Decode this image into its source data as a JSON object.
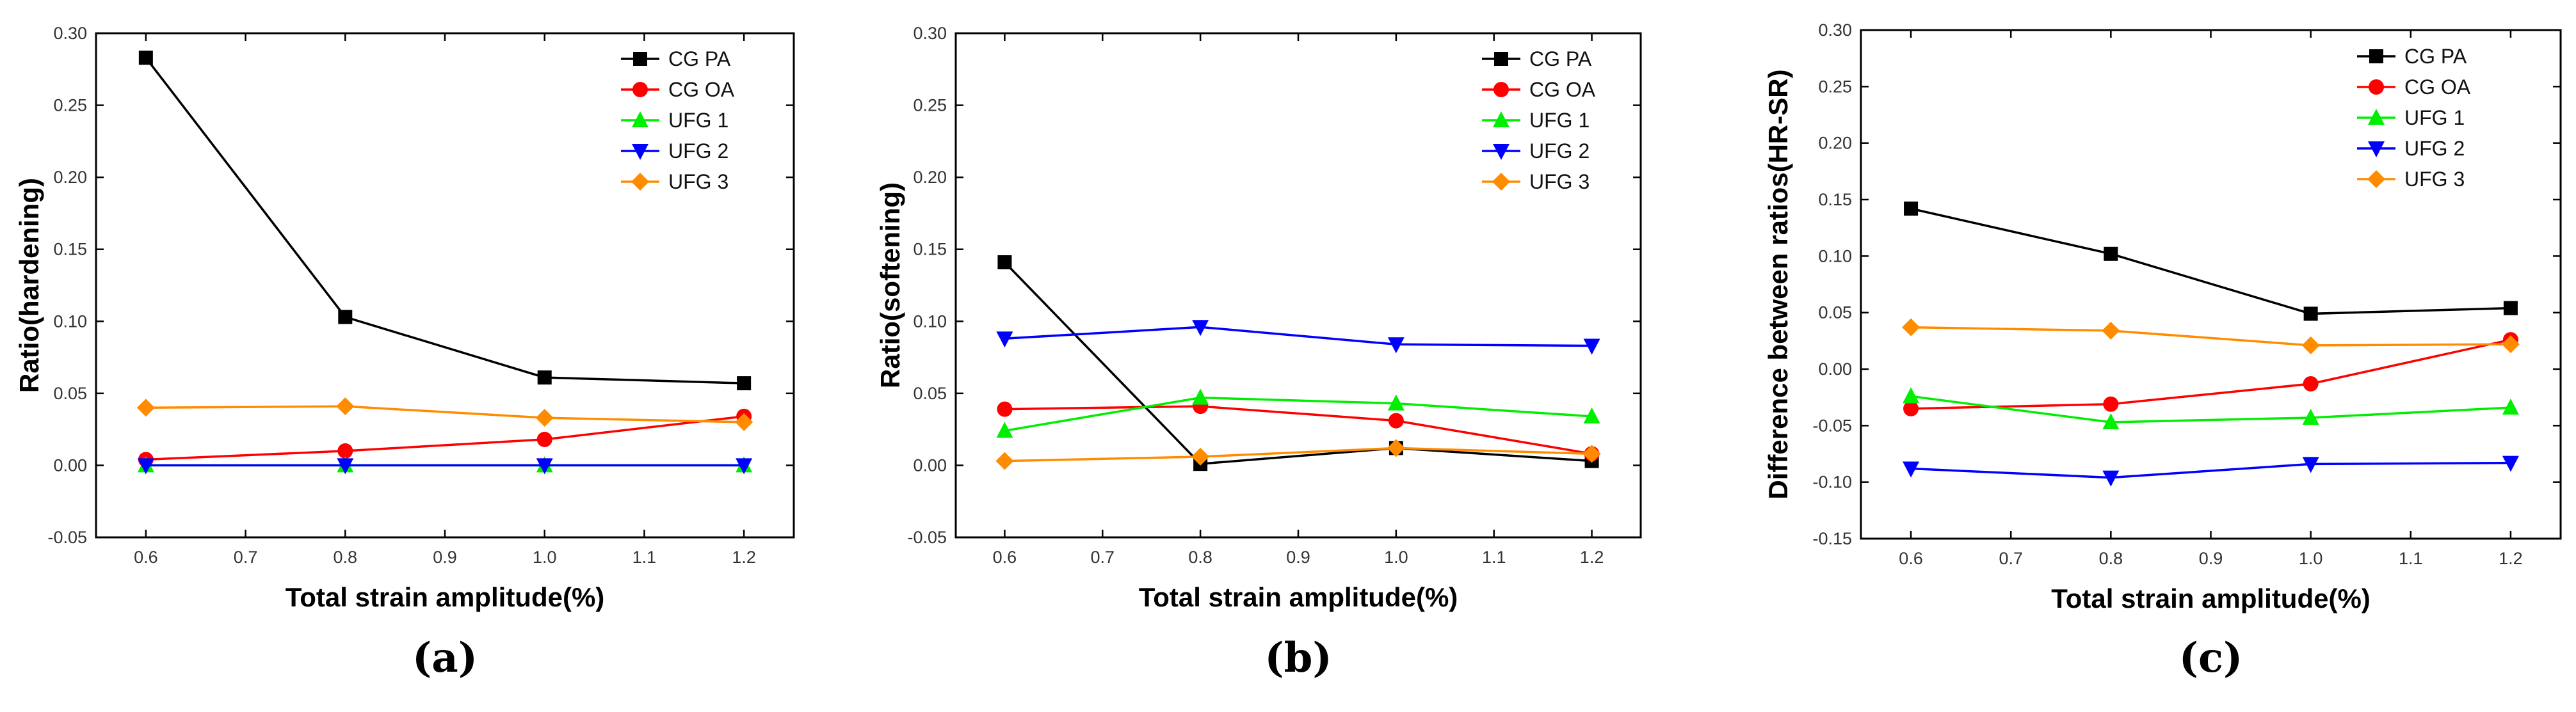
{
  "chart_data": [
    {
      "type": "line",
      "panel": "(a)",
      "xlabel": "Total strain amplitude(%)",
      "ylabel": "Ratio(hardening)",
      "xlim": [
        0.55,
        1.25
      ],
      "ylim": [
        -0.05,
        0.3
      ],
      "xticks": [
        0.6,
        0.7,
        0.8,
        0.9,
        1.0,
        1.1,
        1.2
      ],
      "xtick_labels": [
        "0.6",
        "0.7",
        "0.8",
        "0.9",
        "1.0",
        "1.1",
        "1.2"
      ],
      "yticks": [
        -0.05,
        0.0,
        0.05,
        0.1,
        0.15,
        0.2,
        0.25,
        0.3
      ],
      "ytick_labels": [
        "-0.05",
        "0.00",
        "0.05",
        "0.10",
        "0.15",
        "0.20",
        "0.25",
        "0.30"
      ],
      "legend_position": "top-right",
      "x": [
        0.6,
        0.8,
        1.0,
        1.2
      ],
      "series": [
        {
          "name": "CG PA",
          "color": "#000000",
          "marker": "square",
          "values": [
            0.283,
            0.103,
            0.061,
            0.057
          ]
        },
        {
          "name": "CG OA",
          "color": "#ff0000",
          "marker": "circle",
          "values": [
            0.004,
            0.01,
            0.018,
            0.034
          ]
        },
        {
          "name": "UFG 1",
          "color": "#00ee00",
          "marker": "triangle-up",
          "values": [
            0.0,
            0.0,
            0.0,
            0.0
          ]
        },
        {
          "name": "UFG 2",
          "color": "#0000ff",
          "marker": "triangle-down",
          "values": [
            0.0,
            0.0,
            0.0,
            0.0
          ]
        },
        {
          "name": "UFG 3",
          "color": "#ff8c00",
          "marker": "diamond",
          "values": [
            0.04,
            0.041,
            0.033,
            0.03
          ]
        }
      ]
    },
    {
      "type": "line",
      "panel": "(b)",
      "xlabel": "Total strain amplitude(%)",
      "ylabel": "Ratio(softening)",
      "xlim": [
        0.55,
        1.25
      ],
      "ylim": [
        -0.05,
        0.3
      ],
      "xticks": [
        0.6,
        0.7,
        0.8,
        0.9,
        1.0,
        1.1,
        1.2
      ],
      "xtick_labels": [
        "0.6",
        "0.7",
        "0.8",
        "0.9",
        "1.0",
        "1.1",
        "1.2"
      ],
      "yticks": [
        -0.05,
        0.0,
        0.05,
        0.1,
        0.15,
        0.2,
        0.25,
        0.3
      ],
      "ytick_labels": [
        "-0.05",
        "0.00",
        "0.05",
        "0.10",
        "0.15",
        "0.20",
        "0.25",
        "0.30"
      ],
      "legend_position": "top-right",
      "x": [
        0.6,
        0.8,
        1.0,
        1.2
      ],
      "series": [
        {
          "name": "CG PA",
          "color": "#000000",
          "marker": "square",
          "values": [
            0.141,
            0.001,
            0.012,
            0.003
          ]
        },
        {
          "name": "CG OA",
          "color": "#ff0000",
          "marker": "circle",
          "values": [
            0.039,
            0.041,
            0.031,
            0.008
          ]
        },
        {
          "name": "UFG 1",
          "color": "#00ee00",
          "marker": "triangle-up",
          "values": [
            0.024,
            0.047,
            0.043,
            0.034
          ]
        },
        {
          "name": "UFG 2",
          "color": "#0000ff",
          "marker": "triangle-down",
          "values": [
            0.088,
            0.096,
            0.084,
            0.083
          ]
        },
        {
          "name": "UFG 3",
          "color": "#ff8c00",
          "marker": "diamond",
          "values": [
            0.003,
            0.006,
            0.012,
            0.008
          ]
        }
      ]
    },
    {
      "type": "line",
      "panel": "(c)",
      "xlabel": "Total strain amplitude(%)",
      "ylabel": "Difference between ratios(HR-SR)",
      "xlim": [
        0.55,
        1.25
      ],
      "ylim": [
        -0.15,
        0.3
      ],
      "xticks": [
        0.6,
        0.7,
        0.8,
        0.9,
        1.0,
        1.1,
        1.2
      ],
      "xtick_labels": [
        "0.6",
        "0.7",
        "0.8",
        "0.9",
        "1.0",
        "1.1",
        "1.2"
      ],
      "yticks": [
        -0.15,
        -0.1,
        -0.05,
        0.0,
        0.05,
        0.1,
        0.15,
        0.2,
        0.25,
        0.3
      ],
      "ytick_labels": [
        "-0.15",
        "-0.10",
        "-0.05",
        "0.00",
        "0.05",
        "0.10",
        "0.15",
        "0.20",
        "0.25",
        "0.30"
      ],
      "legend_position": "top-right",
      "x": [
        0.6,
        0.8,
        1.0,
        1.2
      ],
      "series": [
        {
          "name": "CG PA",
          "color": "#000000",
          "marker": "square",
          "values": [
            0.142,
            0.102,
            0.049,
            0.054
          ]
        },
        {
          "name": "CG OA",
          "color": "#ff0000",
          "marker": "circle",
          "values": [
            -0.035,
            -0.031,
            -0.013,
            0.026
          ]
        },
        {
          "name": "UFG 1",
          "color": "#00ee00",
          "marker": "triangle-up",
          "values": [
            -0.024,
            -0.047,
            -0.043,
            -0.034
          ]
        },
        {
          "name": "UFG 2",
          "color": "#0000ff",
          "marker": "triangle-down",
          "values": [
            -0.088,
            -0.096,
            -0.084,
            -0.083
          ]
        },
        {
          "name": "UFG 3",
          "color": "#ff8c00",
          "marker": "diamond",
          "values": [
            0.037,
            0.034,
            0.021,
            0.022
          ]
        }
      ]
    }
  ]
}
